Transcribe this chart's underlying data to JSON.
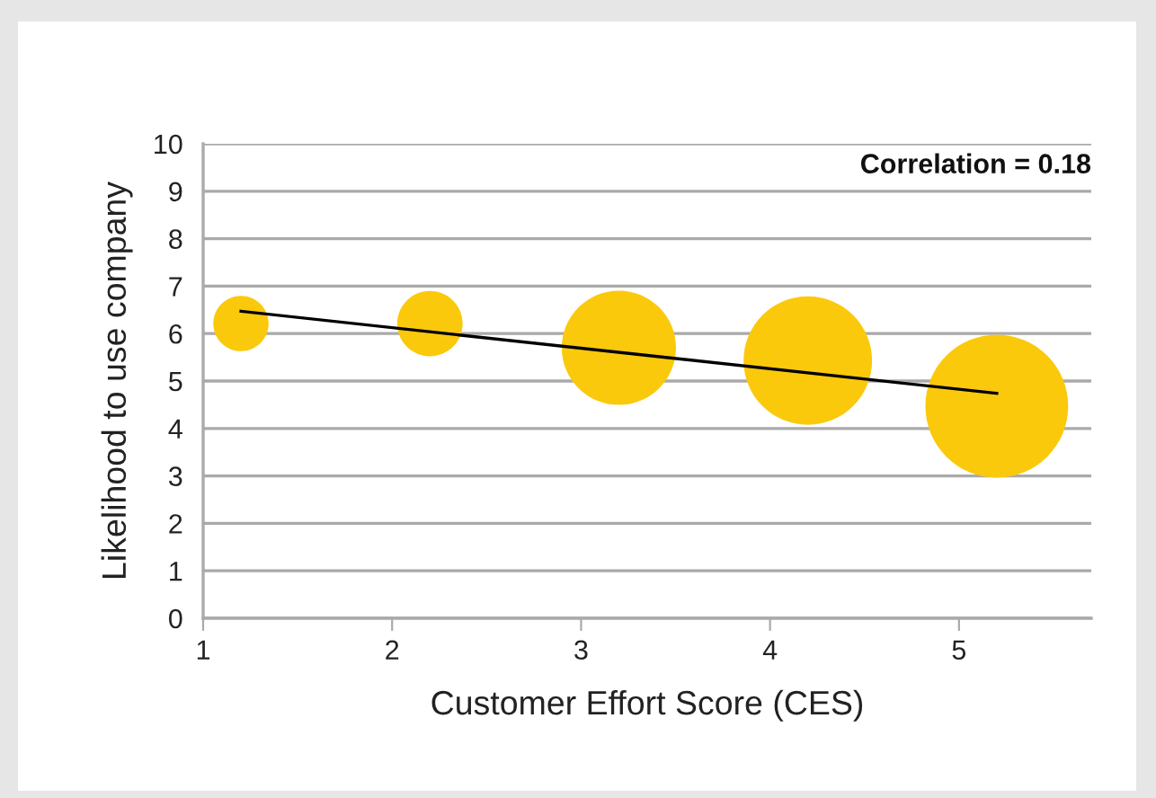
{
  "chart_data": {
    "type": "bubble",
    "xlabel": "Customer Effort Score (CES)",
    "ylabel": "Likelihood to use company",
    "annotations": [
      "Correlation = 0.18"
    ],
    "series": [
      {
        "color": "#fbc90b",
        "x": [
          1.2,
          2.2,
          3.2,
          4.2,
          5.2
        ],
        "values": [
          6.21,
          6.21,
          5.7,
          5.43,
          4.47
        ],
        "sizes": [
          0.15,
          0.21,
          0.64,
          0.81,
          1
        ]
      },
      {
        "type": "line",
        "color": "#000000",
        "x": [
          1.2,
          5.2
        ],
        "values": [
          6.47,
          4.74
        ]
      }
    ],
    "xlim": [
      1,
      5.7
    ],
    "xticks": [
      1,
      2,
      3,
      4,
      5
    ],
    "ylim": [
      0,
      10
    ],
    "yticks": [
      0,
      1,
      2,
      3,
      4,
      5,
      6,
      7,
      8,
      9,
      10
    ],
    "grid": "y"
  }
}
